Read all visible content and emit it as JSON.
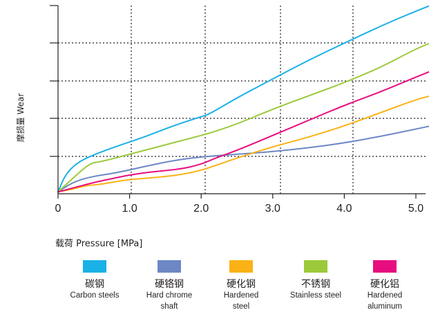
{
  "chart_data": {
    "type": "line",
    "xlabel": "载荷 Pressure  [MPa]",
    "ylabel": "摩损量 Wear",
    "x_ticks": [
      "0",
      "1.0",
      "2.0",
      "3.0",
      "4.0",
      "5.0"
    ],
    "xlim": [
      0,
      5.2
    ],
    "ylim": [
      0,
      5
    ],
    "grid": true,
    "legend_position": "bottom",
    "series": [
      {
        "name_cn": "碳钢",
        "name": "Carbon steels",
        "color": "#1ab1e6",
        "points": [
          [
            0,
            0.05
          ],
          [
            0.1,
            0.5
          ],
          [
            0.25,
            0.8
          ],
          [
            0.45,
            1.0
          ],
          [
            0.8,
            1.25
          ],
          [
            1.2,
            1.5
          ],
          [
            1.6,
            1.8
          ],
          [
            2.0,
            2.05
          ],
          [
            2.1,
            2.1
          ],
          [
            2.5,
            2.55
          ],
          [
            3.0,
            3.05
          ],
          [
            3.5,
            3.55
          ],
          [
            4.0,
            4.0
          ],
          [
            4.5,
            4.45
          ],
          [
            5.0,
            4.85
          ],
          [
            5.2,
            5.0
          ]
        ]
      },
      {
        "name_cn": "硬铬钢",
        "name": "Hard chrome shaft",
        "color": "#6d87c5",
        "points": [
          [
            0,
            0.05
          ],
          [
            0.2,
            0.3
          ],
          [
            0.45,
            0.45
          ],
          [
            0.8,
            0.55
          ],
          [
            1.2,
            0.72
          ],
          [
            1.6,
            0.88
          ],
          [
            2.0,
            0.98
          ],
          [
            2.5,
            1.05
          ],
          [
            3.0,
            1.12
          ],
          [
            3.5,
            1.22
          ],
          [
            4.0,
            1.35
          ],
          [
            4.5,
            1.52
          ],
          [
            5.0,
            1.72
          ],
          [
            5.2,
            1.8
          ]
        ]
      },
      {
        "name_cn": "硬化钢",
        "name": "Hardened steel",
        "color": "#fab216",
        "points": [
          [
            0,
            0.05
          ],
          [
            0.2,
            0.12
          ],
          [
            0.4,
            0.22
          ],
          [
            0.6,
            0.25
          ],
          [
            0.8,
            0.32
          ],
          [
            1.0,
            0.38
          ],
          [
            1.3,
            0.42
          ],
          [
            1.7,
            0.5
          ],
          [
            2.0,
            0.62
          ],
          [
            2.2,
            0.75
          ],
          [
            2.5,
            0.95
          ],
          [
            3.0,
            1.25
          ],
          [
            3.5,
            1.5
          ],
          [
            4.0,
            1.8
          ],
          [
            4.5,
            2.15
          ],
          [
            5.0,
            2.5
          ],
          [
            5.2,
            2.6
          ]
        ]
      },
      {
        "name_cn": "不锈钢",
        "name": "Stainless steel",
        "color": "#9cc93a",
        "points": [
          [
            0,
            0.05
          ],
          [
            0.2,
            0.4
          ],
          [
            0.45,
            0.82
          ],
          [
            0.6,
            0.85
          ],
          [
            1.0,
            1.05
          ],
          [
            1.5,
            1.3
          ],
          [
            2.0,
            1.55
          ],
          [
            2.1,
            1.6
          ],
          [
            2.5,
            1.85
          ],
          [
            3.0,
            2.25
          ],
          [
            3.5,
            2.6
          ],
          [
            4.0,
            2.95
          ],
          [
            4.5,
            3.35
          ],
          [
            5.0,
            3.85
          ],
          [
            5.2,
            4.0
          ]
        ]
      },
      {
        "name_cn": "硬化铝",
        "name": "Hardened aluminum",
        "color": "#e80d7f",
        "points": [
          [
            0,
            0.05
          ],
          [
            0.2,
            0.15
          ],
          [
            0.5,
            0.3
          ],
          [
            0.8,
            0.42
          ],
          [
            1.0,
            0.5
          ],
          [
            1.3,
            0.58
          ],
          [
            1.7,
            0.65
          ],
          [
            2.0,
            0.78
          ],
          [
            2.2,
            0.95
          ],
          [
            2.5,
            1.15
          ],
          [
            3.0,
            1.55
          ],
          [
            3.5,
            1.95
          ],
          [
            4.0,
            2.35
          ],
          [
            4.5,
            2.7
          ],
          [
            5.0,
            3.1
          ],
          [
            5.2,
            3.25
          ]
        ]
      }
    ]
  },
  "legend": [
    {
      "cn": "碳钢",
      "en": "Carbon steels",
      "color": "#1ab1e6"
    },
    {
      "cn": "硬铬钢",
      "en": "Hard chrome shaft",
      "color": "#6d87c5"
    },
    {
      "cn": "硬化钢",
      "en": "Hardened steel",
      "color": "#fab216"
    },
    {
      "cn": "不锈钢",
      "en": "Stainless steel",
      "color": "#9cc93a"
    },
    {
      "cn": "硬化铝",
      "en": "Hardened aluminum",
      "color": "#e80d7f"
    }
  ]
}
